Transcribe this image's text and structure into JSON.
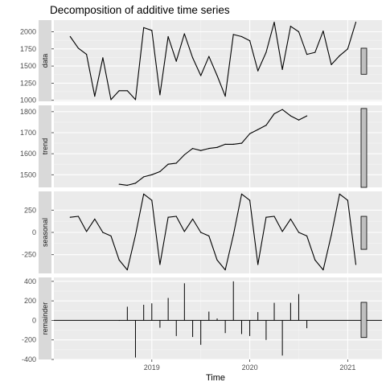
{
  "chart_data": {
    "type": "line",
    "title": "Decomposition of additive time series",
    "xlabel": "Time",
    "x_ticks": [
      {
        "label": "2019",
        "value": 2019
      },
      {
        "label": "2020",
        "value": 2020
      },
      {
        "label": "2021",
        "value": 2021
      }
    ],
    "xlim": [
      2018.0,
      2021.35
    ],
    "panels": [
      {
        "name": "data",
        "style": "line",
        "ylim": [
          985,
          2170
        ],
        "y_ticks": [
          1000,
          1250,
          1500,
          1750,
          2000
        ],
        "range_bar": [
          1380,
          1760
        ],
        "x": [
          2018.167,
          2018.25,
          2018.333,
          2018.417,
          2018.5,
          2018.583,
          2018.667,
          2018.75,
          2018.833,
          2018.917,
          2019.0,
          2019.083,
          2019.167,
          2019.25,
          2019.333,
          2019.417,
          2019.5,
          2019.583,
          2019.667,
          2019.75,
          2019.833,
          2019.917,
          2020.0,
          2020.083,
          2020.167,
          2020.25,
          2020.333,
          2020.417,
          2020.5,
          2020.583,
          2020.667,
          2020.75,
          2020.833,
          2020.917,
          2021.0,
          2021.083
        ],
        "values": [
          1930,
          1760,
          1670,
          1060,
          1620,
          1010,
          1140,
          1140,
          1010,
          2060,
          2020,
          1080,
          1930,
          1570,
          1970,
          1620,
          1360,
          1640,
          1360,
          1060,
          1960,
          1930,
          1870,
          1430,
          1700,
          2140,
          1450,
          2080,
          2000,
          1670,
          1700,
          2010,
          1520,
          1650,
          1750,
          2140
        ]
      },
      {
        "name": "trend",
        "style": "line",
        "ylim": [
          1440,
          1830
        ],
        "y_ticks": [
          1500,
          1600,
          1700,
          1800
        ],
        "range_bar": [
          1440,
          1815
        ],
        "x": [
          2018.667,
          2018.75,
          2018.833,
          2018.917,
          2019.0,
          2019.083,
          2019.167,
          2019.25,
          2019.333,
          2019.417,
          2019.5,
          2019.583,
          2019.667,
          2019.75,
          2019.833,
          2019.917,
          2020.0,
          2020.083,
          2020.167,
          2020.25,
          2020.333,
          2020.417,
          2020.5,
          2020.583
        ],
        "values": [
          1455,
          1450,
          1460,
          1490,
          1500,
          1515,
          1550,
          1555,
          1595,
          1625,
          1615,
          1625,
          1630,
          1645,
          1645,
          1650,
          1695,
          1715,
          1735,
          1790,
          1810,
          1780,
          1760,
          1780
        ]
      },
      {
        "name": "seasonal",
        "style": "line",
        "ylim": [
          -460,
          460
        ],
        "y_ticks": [
          -250,
          0,
          250
        ],
        "range_bar": [
          -190,
          180
        ],
        "x": [
          2018.167,
          2018.25,
          2018.333,
          2018.417,
          2018.5,
          2018.583,
          2018.667,
          2018.75,
          2018.833,
          2018.917,
          2019.0,
          2019.083,
          2019.167,
          2019.25,
          2019.333,
          2019.417,
          2019.5,
          2019.583,
          2019.667,
          2019.75,
          2019.833,
          2019.917,
          2020.0,
          2020.083,
          2020.167,
          2020.25,
          2020.333,
          2020.417,
          2020.5,
          2020.583,
          2020.667,
          2020.75,
          2020.833,
          2020.917,
          2021.0,
          2021.083
        ],
        "values": [
          170,
          180,
          10,
          150,
          0,
          -40,
          -310,
          -420,
          -30,
          430,
          360,
          -360,
          170,
          180,
          10,
          150,
          0,
          -40,
          -310,
          -420,
          -30,
          430,
          360,
          -360,
          170,
          180,
          10,
          150,
          0,
          -40,
          -310,
          -420,
          -30,
          430,
          360,
          -360
        ]
      },
      {
        "name": "remainder",
        "style": "spikes",
        "ylim": [
          -400,
          440
        ],
        "y_ticks": [
          -400,
          -200,
          0,
          200,
          400
        ],
        "range_bar": [
          -175,
          185
        ],
        "x": [
          2018.667,
          2018.75,
          2018.833,
          2018.917,
          2019.0,
          2019.083,
          2019.167,
          2019.25,
          2019.333,
          2019.417,
          2019.5,
          2019.583,
          2019.667,
          2019.75,
          2019.833,
          2019.917,
          2020.0,
          2020.083,
          2020.167,
          2020.25,
          2020.333,
          2020.417,
          2020.5,
          2020.583
        ],
        "values": [
          -5,
          140,
          -380,
          160,
          175,
          -75,
          230,
          -160,
          380,
          -170,
          -250,
          90,
          20,
          -130,
          400,
          -140,
          -160,
          85,
          -200,
          180,
          -360,
          180,
          270,
          -80
        ]
      }
    ]
  }
}
